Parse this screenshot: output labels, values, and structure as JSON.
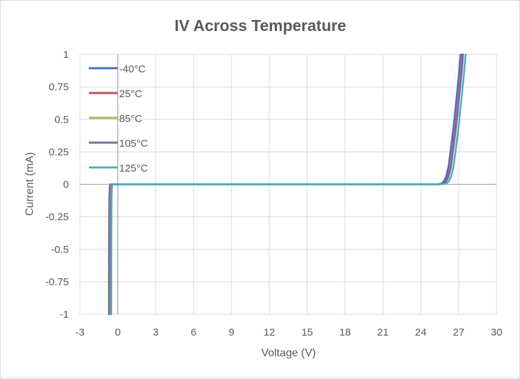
{
  "chart_data": {
    "type": "line",
    "title": "IV Across Temperature",
    "xlabel": "Voltage (V)",
    "ylabel": "Current (mA)",
    "xlim": [
      -3,
      30
    ],
    "ylim": [
      -1,
      1
    ],
    "x_ticks": [
      "-3",
      "0",
      "3",
      "6",
      "9",
      "12",
      "15",
      "18",
      "21",
      "24",
      "27",
      "30"
    ],
    "x_tick_values": [
      -3,
      0,
      3,
      6,
      9,
      12,
      15,
      18,
      21,
      24,
      27,
      30
    ],
    "y_ticks": [
      "1",
      "0.75",
      "0.5",
      "0.25",
      "0",
      "-0.25",
      "-0.5",
      "-0.75",
      "-1"
    ],
    "y_tick_values": [
      1,
      0.75,
      0.5,
      0.25,
      0,
      -0.25,
      -0.5,
      -0.75,
      -1
    ],
    "grid": true,
    "legend_position": "top-left",
    "series": [
      {
        "name": "-40°C",
        "color": "#4472c4",
        "x": [
          -0.7,
          -0.69,
          -0.67,
          -0.64,
          -0.6,
          0,
          10,
          20,
          25.2,
          25.6,
          25.8,
          26.0,
          26.2,
          26.6,
          27.0,
          27.15
        ],
        "y": [
          -1,
          -0.5,
          -0.1,
          -0.02,
          0,
          0,
          0,
          0,
          0,
          0.005,
          0.02,
          0.06,
          0.14,
          0.45,
          0.83,
          1
        ]
      },
      {
        "name": "25°C",
        "color": "#c0504d",
        "x": [
          -0.65,
          -0.64,
          -0.62,
          -0.59,
          -0.55,
          0,
          10,
          20,
          25.35,
          25.75,
          25.95,
          26.15,
          26.35,
          26.75,
          27.15,
          27.3
        ],
        "y": [
          -1,
          -0.5,
          -0.1,
          -0.02,
          0,
          0,
          0,
          0,
          0,
          0.005,
          0.02,
          0.06,
          0.14,
          0.45,
          0.83,
          1
        ]
      },
      {
        "name": "85°C",
        "color": "#9bbb59",
        "x": [
          -0.6,
          -0.59,
          -0.57,
          -0.54,
          -0.5,
          0,
          10,
          20,
          25.4,
          25.8,
          26.0,
          26.2,
          26.4,
          26.8,
          27.2,
          27.35
        ],
        "y": [
          -1,
          -0.5,
          -0.1,
          -0.02,
          0,
          0,
          0,
          0,
          0,
          0.005,
          0.02,
          0.06,
          0.14,
          0.45,
          0.83,
          1
        ]
      },
      {
        "name": "105°C",
        "color": "#8064a2",
        "x": [
          -0.57,
          -0.56,
          -0.54,
          -0.51,
          -0.47,
          0,
          10,
          20,
          25.4,
          25.8,
          26.0,
          26.2,
          26.4,
          26.8,
          27.2,
          27.35
        ],
        "y": [
          -1,
          -0.5,
          -0.1,
          -0.02,
          0,
          0,
          0,
          0,
          0,
          0.005,
          0.02,
          0.06,
          0.14,
          0.45,
          0.83,
          1
        ]
      },
      {
        "name": "125°C",
        "color": "#4bacc6",
        "x": [
          -0.52,
          -0.51,
          -0.49,
          -0.46,
          -0.42,
          0,
          10,
          20,
          25.6,
          26.0,
          26.2,
          26.4,
          26.6,
          27.0,
          27.4,
          27.55
        ],
        "y": [
          -1,
          -0.5,
          -0.1,
          -0.02,
          0,
          0,
          0,
          0,
          0,
          0.005,
          0.02,
          0.06,
          0.14,
          0.45,
          0.83,
          1
        ]
      }
    ]
  }
}
